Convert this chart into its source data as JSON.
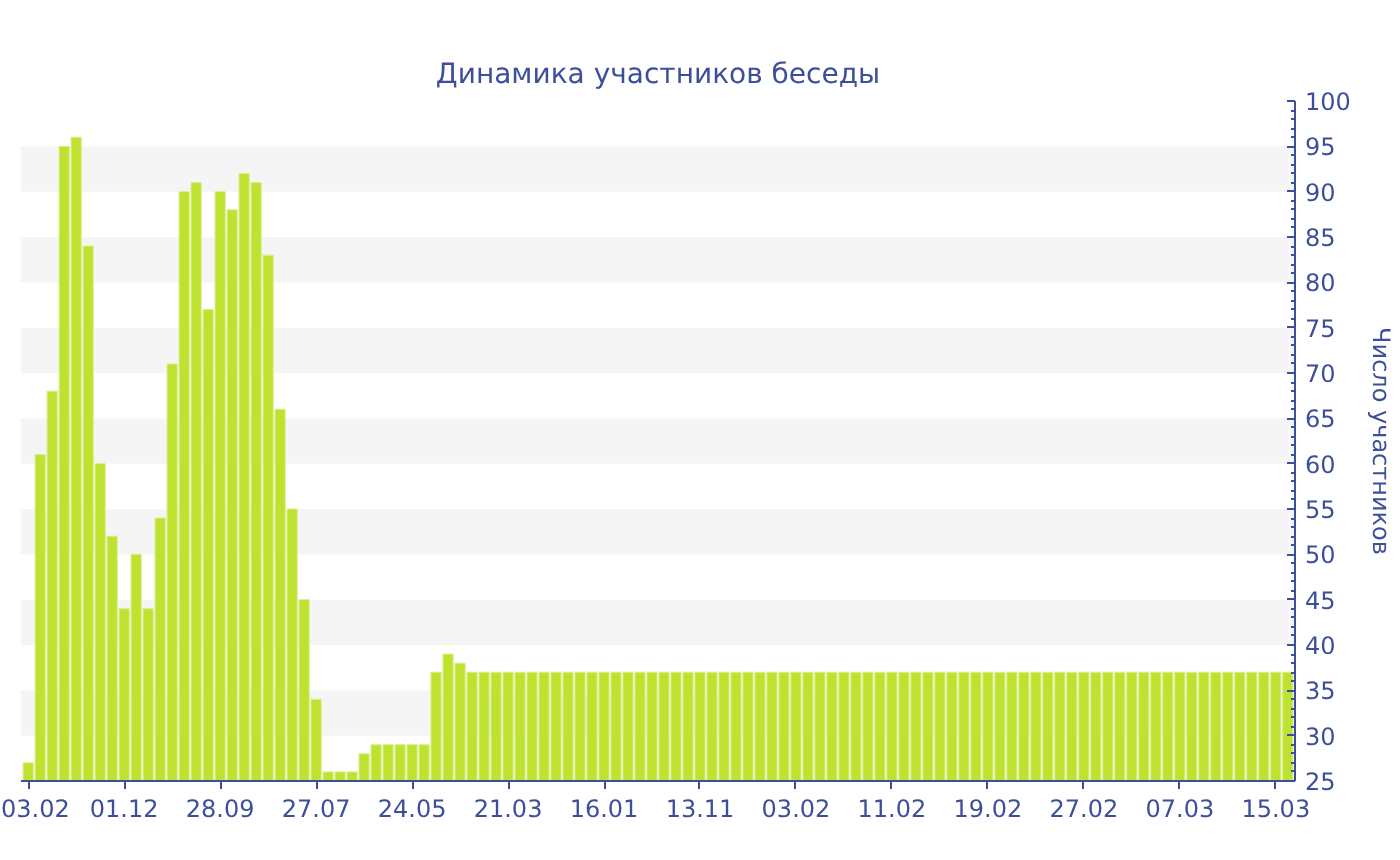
{
  "chart_data": {
    "type": "bar",
    "title": "Динамика участников беседы",
    "ylabel": "Число участников",
    "categories": [
      "03.02",
      null,
      null,
      null,
      null,
      null,
      null,
      null,
      "01.12",
      null,
      null,
      null,
      null,
      null,
      null,
      null,
      "28.09",
      null,
      null,
      null,
      null,
      null,
      null,
      null,
      "27.07",
      null,
      null,
      null,
      null,
      null,
      null,
      null,
      "24.05",
      null,
      null,
      null,
      null,
      null,
      null,
      null,
      "21.03",
      null,
      null,
      null,
      null,
      null,
      null,
      null,
      "16.01",
      null,
      null,
      null,
      null,
      null,
      null,
      null,
      "13.11",
      null,
      null,
      null,
      null,
      null,
      null,
      null,
      "03.02",
      null,
      null,
      null,
      null,
      null,
      null,
      null,
      "11.02",
      null,
      null,
      null,
      null,
      null,
      null,
      null,
      "19.02",
      null,
      null,
      null,
      null,
      null,
      null,
      null,
      "27.02",
      null,
      null,
      null,
      null,
      null,
      null,
      null,
      "07.03",
      null,
      null,
      null,
      null,
      null,
      null,
      null,
      "15.03",
      null
    ],
    "values": [
      27,
      61,
      68,
      95,
      96,
      84,
      60,
      52,
      44,
      50,
      44,
      54,
      71,
      90,
      91,
      77,
      90,
      88,
      92,
      91,
      83,
      66,
      55,
      45,
      34,
      26,
      26,
      26,
      28,
      29,
      29,
      29,
      29,
      29,
      37,
      39,
      38,
      37,
      37,
      37,
      37,
      37,
      37,
      37,
      37,
      37,
      37,
      37,
      37,
      37,
      37,
      37,
      37,
      37,
      37,
      37,
      37,
      37,
      37,
      37,
      37,
      37,
      37,
      37,
      37,
      37,
      37,
      37,
      37,
      37,
      37,
      37,
      37,
      37,
      37,
      37,
      37,
      37,
      37,
      37,
      37,
      37,
      37,
      37,
      37,
      37,
      37,
      37,
      37,
      37,
      37,
      37,
      37,
      37,
      37,
      37,
      37,
      37,
      37,
      37,
      37,
      37,
      37,
      37,
      37,
      37
    ],
    "color": "#bee22f",
    "ylim": [
      25,
      100
    ],
    "yticks": [
      25,
      30,
      35,
      40,
      45,
      50,
      55,
      60,
      65,
      70,
      75,
      80,
      85,
      90,
      95,
      100
    ],
    "bands": [
      {
        "axis": "y",
        "from": 30,
        "to": 35,
        "color": "#f5f5f5"
      },
      {
        "axis": "y",
        "from": 40,
        "to": 45,
        "color": "#f5f5f5"
      },
      {
        "axis": "y",
        "from": 50,
        "to": 55,
        "color": "#f5f5f5"
      },
      {
        "axis": "y",
        "from": 60,
        "to": 65,
        "color": "#f5f5f5"
      },
      {
        "axis": "y",
        "from": 70,
        "to": 75,
        "color": "#f5f5f5"
      },
      {
        "axis": "y",
        "from": 80,
        "to": 85,
        "color": "#f5f5f5"
      },
      {
        "axis": "y",
        "from": 90,
        "to": 95,
        "color": "#f5f5f5"
      }
    ]
  }
}
